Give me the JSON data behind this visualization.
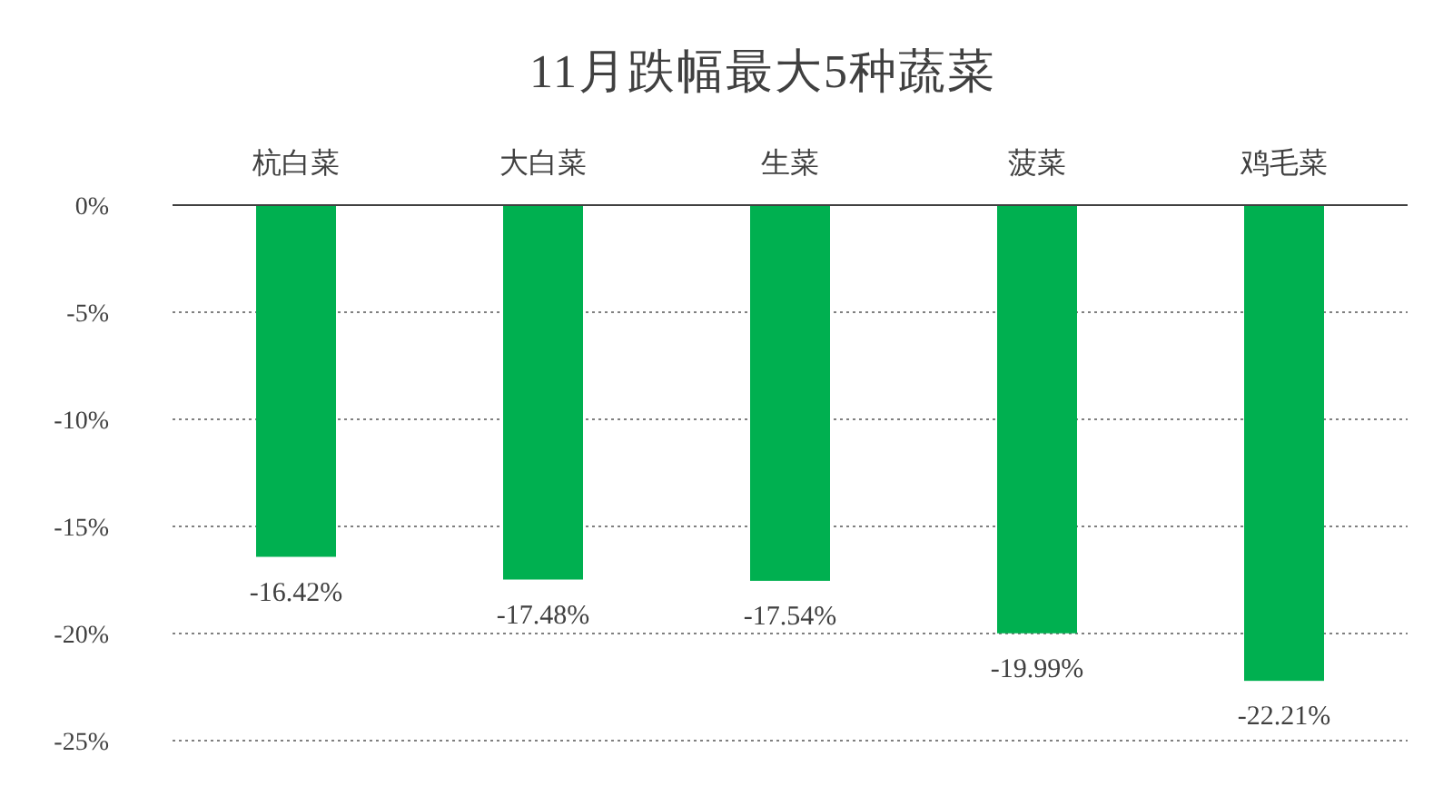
{
  "chart_data": {
    "type": "bar",
    "title": "11月跌幅最大5种蔬菜",
    "categories": [
      "杭白菜",
      "大白菜",
      "生菜",
      "菠菜",
      "鸡毛菜"
    ],
    "values": [
      -16.42,
      -17.48,
      -17.54,
      -19.99,
      -22.21
    ],
    "value_labels": [
      "-16.42%",
      "-17.48%",
      "-17.54%",
      "-19.99%",
      "-22.21%"
    ],
    "color": "#00b050",
    "ylim": [
      -25,
      0
    ],
    "yticks": [
      {
        "value": 0,
        "label": "0%"
      },
      {
        "value": -5,
        "label": "-5%"
      },
      {
        "value": -10,
        "label": "-10%"
      },
      {
        "value": -15,
        "label": "-15%"
      },
      {
        "value": -20,
        "label": "-20%"
      },
      {
        "value": -25,
        "label": "-25%"
      }
    ],
    "grid": "y"
  }
}
